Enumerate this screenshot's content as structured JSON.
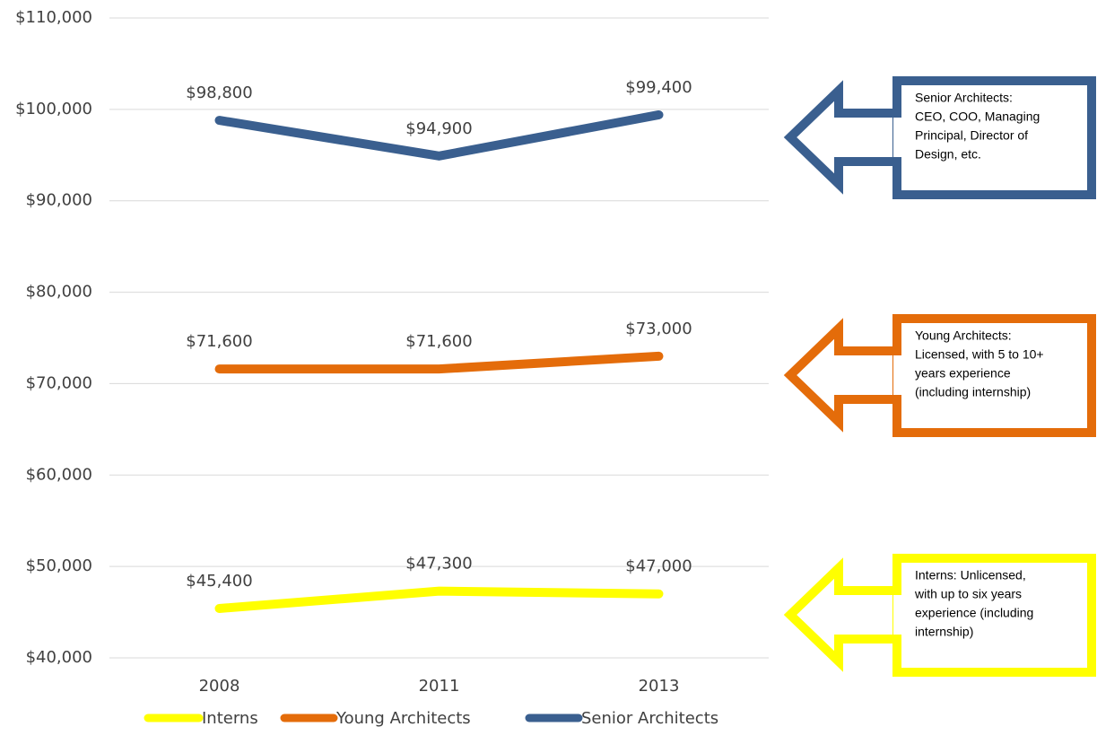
{
  "chart_data": {
    "type": "line",
    "categories": [
      "2008",
      "2011",
      "2013"
    ],
    "series": [
      {
        "name": "Interns",
        "color": "#ffff00",
        "values": [
          45400,
          47300,
          47000
        ],
        "value_labels": [
          "$45,400",
          "$47,300",
          "$47,000"
        ]
      },
      {
        "name": "Young Architects",
        "color": "#e46c0a",
        "values": [
          71600,
          71600,
          73000
        ],
        "value_labels": [
          "$71,600",
          "$71,600",
          "$73,000"
        ]
      },
      {
        "name": "Senior Architects",
        "color": "#3a5f8f",
        "values": [
          98800,
          94900,
          99400
        ],
        "value_labels": [
          "$98,800",
          "$94,900",
          "$99,400"
        ]
      }
    ],
    "ylim": [
      40000,
      110000
    ],
    "yticks": [
      {
        "value": 40000,
        "label": "$40,000"
      },
      {
        "value": 50000,
        "label": "$50,000"
      },
      {
        "value": 60000,
        "label": "$60,000"
      },
      {
        "value": 70000,
        "label": "$70,000"
      },
      {
        "value": 80000,
        "label": "$80,000"
      },
      {
        "value": 90000,
        "label": "$90,000"
      },
      {
        "value": 100000,
        "label": "$100,000"
      },
      {
        "value": 110000,
        "label": "$110,000"
      }
    ],
    "grid": true,
    "legend": "bottom",
    "annotations": [
      {
        "color": "#3a5f8f",
        "lines": [
          "Senior Architects:",
          "CEO, COO, Managing",
          "Principal, Director of",
          "Design, etc."
        ]
      },
      {
        "color": "#e46c0a",
        "lines": [
          "Young Architects:",
          "Licensed, with 5 to 10+",
          "years experience",
          "(including internship)"
        ]
      },
      {
        "color": "#ffff00",
        "lines": [
          "Interns: Unlicensed,",
          "with up to six years",
          "experience (including",
          "internship)"
        ]
      }
    ]
  }
}
